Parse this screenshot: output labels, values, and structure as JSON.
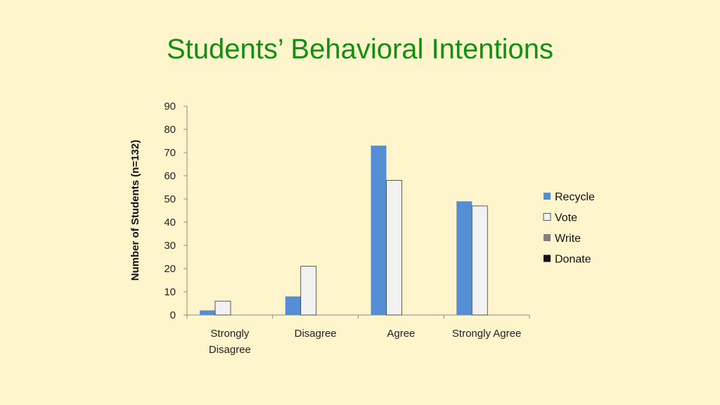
{
  "slide": {
    "title": "Students’ Behavioral Intentions"
  },
  "colors": {
    "background": "#FFF5CC",
    "title": "#109010",
    "Recycle": "#558ED5",
    "Vote": "#F2F2F2",
    "Write": "#808080",
    "Donate": "#111111"
  },
  "chart_data": {
    "type": "bar",
    "title": "",
    "xlabel": "",
    "ylabel": "Number of Students (n=132)",
    "ylim": [
      0,
      90
    ],
    "yticks": [
      0,
      10,
      20,
      30,
      40,
      50,
      60,
      70,
      80,
      90
    ],
    "categories": [
      [
        "Strongly",
        "Disagree"
      ],
      [
        "Disagree"
      ],
      [
        "Agree"
      ],
      [
        "Strongly Agree"
      ]
    ],
    "series": [
      {
        "name": "Recycle",
        "values": [
          2,
          8,
          73,
          49
        ]
      },
      {
        "name": "Vote",
        "values": [
          6,
          21,
          58,
          47
        ]
      },
      {
        "name": "Write",
        "values": [
          0,
          0,
          0,
          0
        ]
      },
      {
        "name": "Donate",
        "values": [
          0,
          0,
          0,
          0
        ]
      }
    ],
    "legend": "right",
    "grid": false
  }
}
